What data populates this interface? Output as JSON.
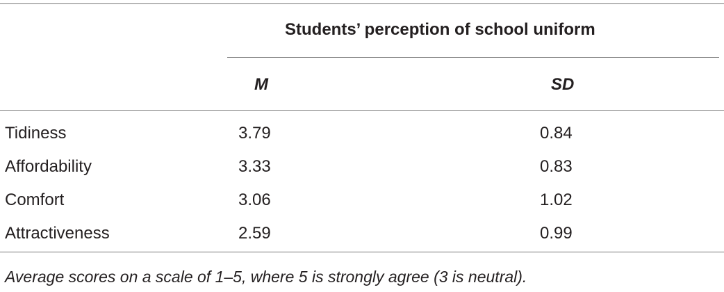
{
  "table": {
    "group_header": "Students’ perception of school uniform",
    "columns": [
      "M",
      "SD"
    ],
    "rows": [
      [
        "Tidiness",
        "3.79",
        "0.84"
      ],
      [
        "Affordability",
        "3.33",
        "0.83"
      ],
      [
        "Comfort",
        "3.06",
        "1.02"
      ],
      [
        "Attractiveness",
        "2.59",
        "0.99"
      ]
    ],
    "footnote": "Average scores on a scale of 1–5, where 5 is strongly agree (3 is neutral)."
  }
}
